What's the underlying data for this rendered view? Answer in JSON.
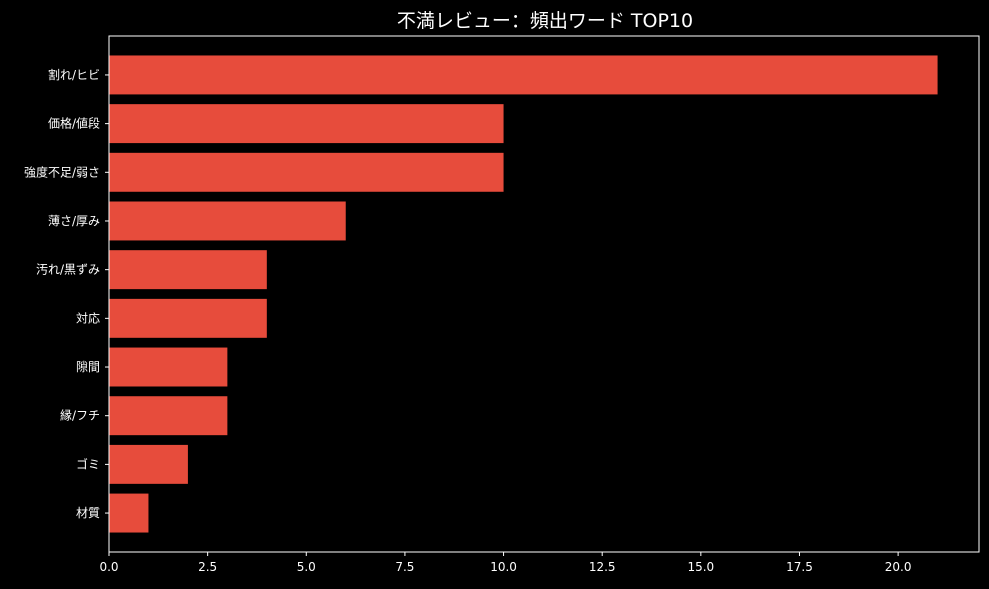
{
  "chart_data": {
    "type": "bar",
    "orientation": "horizontal",
    "title": "不満レビュー：頻出ワード TOP10",
    "xlabel": "",
    "ylabel": "",
    "categories": [
      "割れ/ヒビ",
      "価格/値段",
      "強度不足/弱さ",
      "薄さ/厚み",
      "汚れ/黒ずみ",
      "対応",
      "隙間",
      "縁/フチ",
      "ゴミ",
      "材質"
    ],
    "values": [
      21,
      10,
      10,
      6,
      4,
      4,
      3,
      3,
      2,
      1
    ],
    "xlim": [
      0,
      22.05
    ],
    "xticks": [
      0,
      2.5,
      5,
      7.5,
      10,
      12.5,
      15,
      17.5,
      20
    ],
    "xtick_labels": [
      "0.0",
      "2.5",
      "5.0",
      "7.5",
      "10.0",
      "12.5",
      "15.0",
      "17.5",
      "20.0"
    ],
    "grid": false,
    "legend": "none",
    "colors": {
      "bar": "#e74c3c",
      "background": "#000000",
      "text": "#ffffff",
      "axis": "#ffffff"
    }
  }
}
